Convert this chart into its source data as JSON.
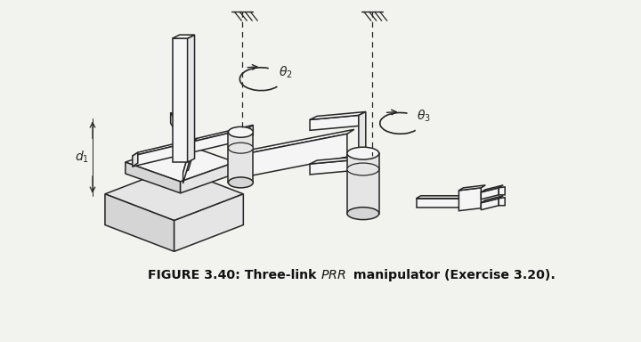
{
  "bg": "#f2f2ee",
  "lc": "#252525",
  "lw": 1.1,
  "fc_light": "#f5f5f5",
  "fc_mid": "#e5e5e5",
  "fc_dark": "#d5d5d5",
  "caption": "FIGURE 3.40: Three-link ",
  "caption_PRR": "PRR",
  "caption_end": " manipulator (Exercise 3.20).",
  "d1_label": "$d_1$",
  "t2_label": "$\\theta_2$",
  "t3_label": "$\\theta_3$"
}
